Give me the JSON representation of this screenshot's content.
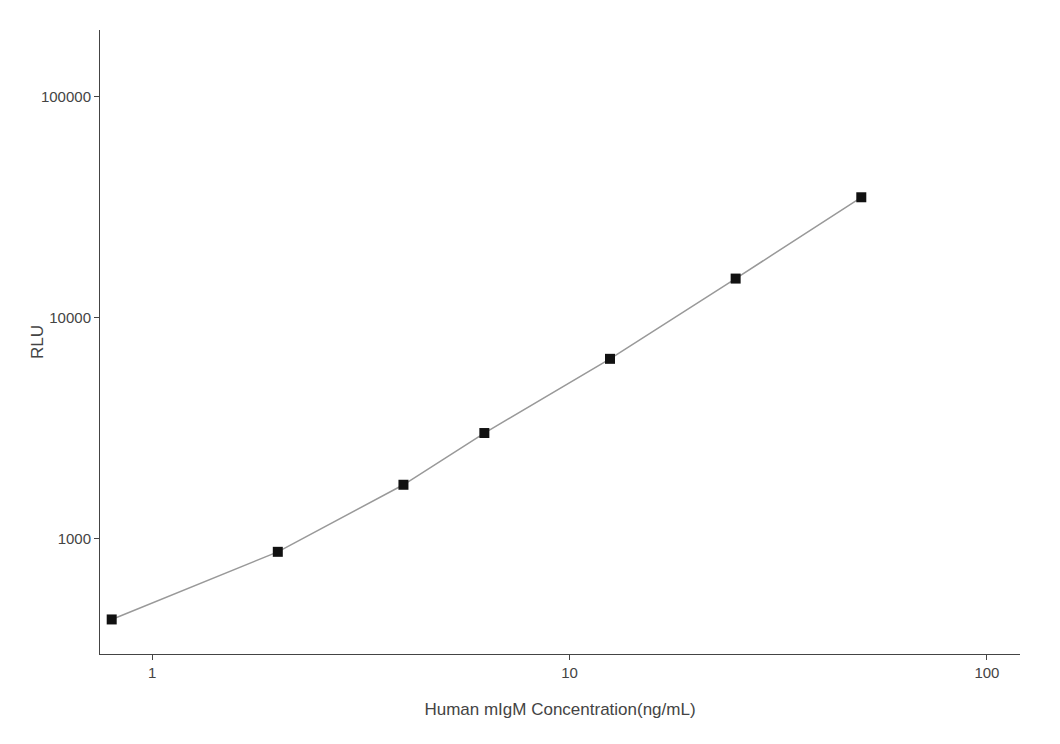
{
  "chart_data": {
    "type": "line",
    "x": [
      0.8,
      2.0,
      4.0,
      6.25,
      12.5,
      25.0,
      50.0
    ],
    "values": [
      430,
      870,
      1750,
      3000,
      6500,
      15000,
      35000
    ],
    "xlabel": "Human mIgM Concentration(ng/mL)",
    "ylabel": "RLU",
    "xlim": [
      0.75,
      120
    ],
    "ylim": [
      300,
      200000
    ],
    "xticks": [
      1,
      10,
      100
    ],
    "yticks": [
      1000,
      10000,
      100000
    ],
    "log": true,
    "grid": false,
    "color": "#111111",
    "marker": "square"
  }
}
